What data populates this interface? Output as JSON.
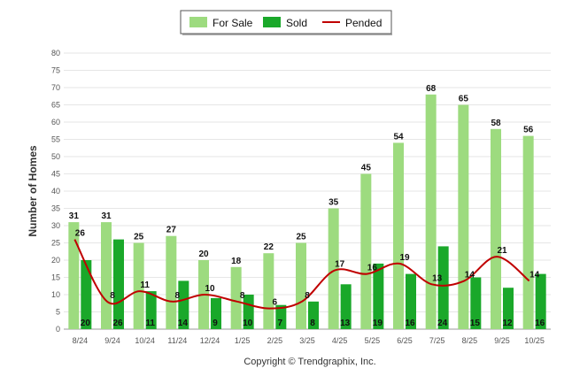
{
  "chart_data": {
    "type": "bar",
    "title": "",
    "xlabel": "",
    "ylabel": "Number of Homes",
    "ylim": [
      0,
      80
    ],
    "ytick_step": 5,
    "categories": [
      "8/24",
      "9/24",
      "10/24",
      "11/24",
      "12/24",
      "1/25",
      "2/25",
      "3/25",
      "4/25",
      "5/25",
      "6/25",
      "7/25",
      "8/25",
      "9/25",
      "10/25"
    ],
    "series": [
      {
        "name": "For Sale",
        "kind": "bar",
        "color": "#9ddb7f",
        "values": [
          31,
          31,
          25,
          27,
          20,
          18,
          22,
          25,
          35,
          45,
          54,
          68,
          65,
          58,
          56
        ]
      },
      {
        "name": "Sold",
        "kind": "bar",
        "color": "#1aa82a",
        "values": [
          20,
          26,
          11,
          14,
          9,
          10,
          7,
          8,
          13,
          19,
          16,
          24,
          15,
          12,
          16
        ]
      },
      {
        "name": "Pended",
        "kind": "line",
        "color": "#c00000",
        "values": [
          26,
          8,
          11,
          8,
          10,
          8,
          6,
          8,
          17,
          16,
          19,
          13,
          14,
          21,
          14
        ]
      }
    ],
    "legend_position": "top-center",
    "grid": true
  },
  "footer": {
    "copyright": "Copyright © Trendgraphix, Inc."
  }
}
